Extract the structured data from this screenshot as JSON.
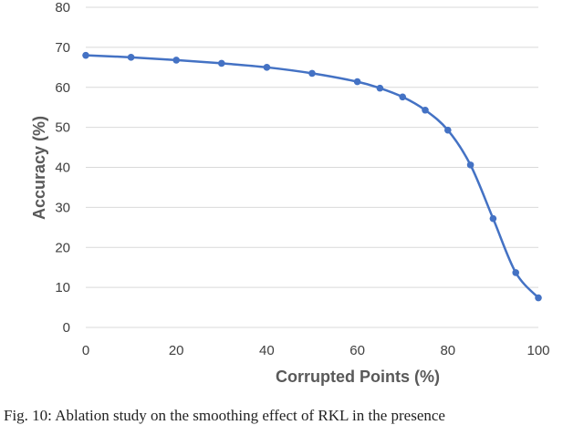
{
  "chart_data": {
    "type": "line",
    "xlabel": "Corrupted Points (%)",
    "ylabel": "Accuracy (%)",
    "xlim": [
      0,
      100
    ],
    "ylim": [
      0,
      80
    ],
    "x_ticks": [
      0,
      20,
      40,
      60,
      80,
      100
    ],
    "y_ticks": [
      0,
      10,
      20,
      30,
      40,
      50,
      60,
      70,
      80
    ],
    "grid": "horizontal",
    "legend": "none",
    "smooth": true,
    "series": [
      {
        "color": "#4472C4",
        "marker": "circle",
        "x": [
          0,
          10,
          20,
          30,
          40,
          50,
          60,
          65,
          70,
          75,
          80,
          85,
          90,
          95,
          100
        ],
        "y": [
          68.0,
          67.5,
          66.8,
          66.0,
          65.0,
          63.5,
          61.4,
          59.8,
          57.6,
          54.3,
          49.3,
          40.6,
          27.2,
          13.7,
          7.4
        ]
      }
    ]
  },
  "caption": "Fig. 10: Ablation study on the smoothing effect of RKL in the presence"
}
